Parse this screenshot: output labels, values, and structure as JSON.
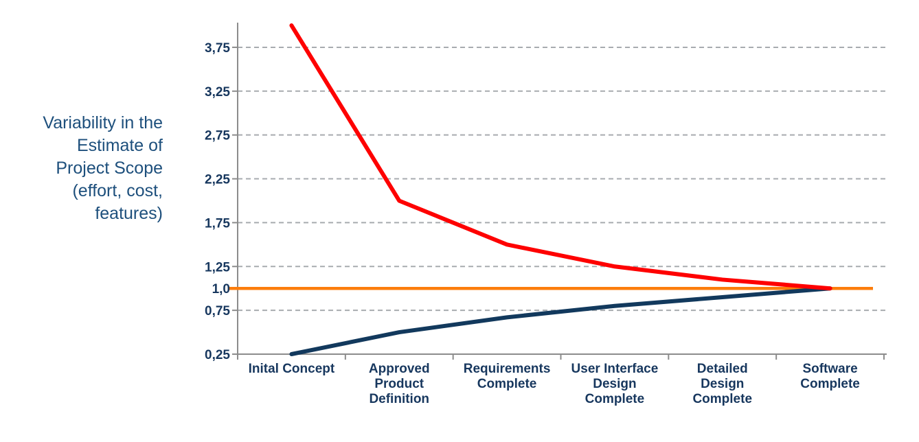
{
  "title_block": {
    "lines": [
      "Variability in the",
      "Estimate of",
      "Project Scope",
      "(effort, cost,",
      "features)"
    ]
  },
  "chart_data": {
    "type": "line",
    "title": "",
    "ylabel": "Variability in the Estimate of Project Scope (effort, cost, features)",
    "xlabel": "",
    "legend": "none",
    "grid": "horizontal-dashed",
    "ylim": [
      0.25,
      4.03
    ],
    "categories": [
      "Inital Concept",
      "Approved Product Definition",
      "Requirements Complete",
      "User Interface Design Complete",
      "Detailed Design Complete",
      "Software Complete"
    ],
    "category_lines": [
      [
        "Inital Concept"
      ],
      [
        "Approved",
        "Product",
        "Definition"
      ],
      [
        "Requirements",
        "Complete"
      ],
      [
        "User Interface",
        "Design",
        "Complete"
      ],
      [
        "Detailed",
        "Design",
        "Complete"
      ],
      [
        "Software",
        "Complete"
      ]
    ],
    "series": [
      {
        "name": "upper-estimate-bound",
        "color": "#FE0000",
        "values": [
          4.0,
          2.0,
          1.5,
          1.25,
          1.1,
          1.0
        ]
      },
      {
        "name": "lower-estimate-bound",
        "color": "#12395D",
        "values": [
          0.25,
          0.5,
          0.67,
          0.8,
          0.9,
          1.0
        ]
      }
    ],
    "baseline": {
      "name": "final-value-reference",
      "value": 1.0,
      "color": "#FC7D0C",
      "extends_full_width": true
    },
    "y_ticks": [
      {
        "label": "3,75",
        "value": 3.75
      },
      {
        "label": "3,25",
        "value": 3.25
      },
      {
        "label": "2,75",
        "value": 2.75
      },
      {
        "label": "2,25",
        "value": 2.25
      },
      {
        "label": "1,75",
        "value": 1.75
      },
      {
        "label": "1,25",
        "value": 1.25
      },
      {
        "label": "1,0",
        "value": 1.0
      },
      {
        "label": "0,75",
        "value": 0.75
      },
      {
        "label": "0,25",
        "value": 0.25
      }
    ],
    "grid_values": [
      3.75,
      3.25,
      2.75,
      2.25,
      1.75,
      1.25,
      0.75
    ],
    "tick_values": [
      3.75,
      3.25,
      2.75,
      2.25,
      1.75,
      1.25,
      0.75,
      0.25
    ]
  },
  "colors": {
    "upper_line": "#FE0000",
    "lower_line": "#12395D",
    "baseline_line": "#FC7D0C",
    "axis": "#8C8C8C",
    "gridline": "#A7ABAF",
    "tick_label": "#17375E",
    "title_text": "#1D4F7C",
    "background": "#FFFFFF"
  }
}
